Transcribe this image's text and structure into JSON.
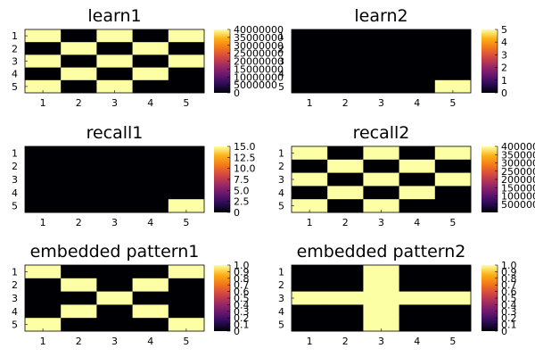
{
  "colors": {
    "background": "#ffffff",
    "axis": "#000000",
    "colormap": "inferno",
    "colormap_stops": [
      "#000004",
      "#2d0b59",
      "#6a176e",
      "#a02a63",
      "#d44842",
      "#f37819",
      "#fcb216",
      "#fcffa4"
    ]
  },
  "chart_data": [
    {
      "type": "heatmap",
      "title": "learn1",
      "x_ticks": [
        "1",
        "2",
        "3",
        "4",
        "5"
      ],
      "y_ticks": [
        "1",
        "2",
        "3",
        "4",
        "5"
      ],
      "clim": [
        0,
        40000000
      ],
      "colorbar_ticks": [
        "0",
        "5000000",
        "10000000",
        "15000000",
        "20000000",
        "25000000",
        "30000000",
        "35000000",
        "40000000"
      ],
      "values": [
        [
          40000000,
          0,
          40000000,
          0,
          40000000
        ],
        [
          0,
          40000000,
          0,
          40000000,
          0
        ],
        [
          40000000,
          0,
          40000000,
          0,
          40000000
        ],
        [
          0,
          40000000,
          0,
          40000000,
          0
        ],
        [
          40000000,
          0,
          40000000,
          0,
          0
        ]
      ]
    },
    {
      "type": "heatmap",
      "title": "learn2",
      "x_ticks": [
        "1",
        "2",
        "3",
        "4",
        "5"
      ],
      "y_ticks": [
        "1",
        "2",
        "3",
        "4",
        "5"
      ],
      "clim": [
        0,
        5
      ],
      "colorbar_ticks": [
        "0",
        "1",
        "2",
        "3",
        "4",
        "5"
      ],
      "values": [
        [
          0,
          0,
          0,
          0,
          0
        ],
        [
          0,
          0,
          0,
          0,
          0
        ],
        [
          0,
          0,
          0,
          0,
          0
        ],
        [
          0,
          0,
          0,
          0,
          0
        ],
        [
          0,
          0,
          0,
          0,
          5
        ]
      ]
    },
    {
      "type": "heatmap",
      "title": "recall1",
      "x_ticks": [
        "1",
        "2",
        "3",
        "4",
        "5"
      ],
      "y_ticks": [
        "1",
        "2",
        "3",
        "4",
        "5"
      ],
      "clim": [
        0,
        15
      ],
      "colorbar_ticks": [
        "0",
        "2.5",
        "5.0",
        "7.5",
        "10.0",
        "12.5",
        "15.0"
      ],
      "values": [
        [
          0,
          0,
          0,
          0,
          0
        ],
        [
          0,
          0,
          0,
          0,
          0
        ],
        [
          0,
          0,
          0,
          0,
          0
        ],
        [
          0,
          0,
          0,
          0,
          0
        ],
        [
          0,
          0,
          0,
          0,
          15
        ]
      ]
    },
    {
      "type": "heatmap",
      "title": "recall2",
      "x_ticks": [
        "1",
        "2",
        "3",
        "4",
        "5"
      ],
      "y_ticks": [
        "1",
        "2",
        "3",
        "4",
        "5"
      ],
      "clim": [
        0,
        40000000
      ],
      "colorbar_ticks": [
        "5000000",
        "10000000",
        "15000000",
        "20000000",
        "25000000",
        "30000000",
        "35000000",
        "40000000"
      ],
      "values": [
        [
          40000000,
          0,
          40000000,
          0,
          40000000
        ],
        [
          0,
          40000000,
          0,
          40000000,
          0
        ],
        [
          40000000,
          0,
          40000000,
          0,
          40000000
        ],
        [
          0,
          40000000,
          0,
          40000000,
          0
        ],
        [
          40000000,
          0,
          40000000,
          0,
          0
        ]
      ]
    },
    {
      "type": "heatmap",
      "title": "embedded pattern1",
      "x_ticks": [
        "1",
        "2",
        "3",
        "4",
        "5"
      ],
      "y_ticks": [
        "1",
        "2",
        "3",
        "4",
        "5"
      ],
      "clim": [
        0,
        1
      ],
      "colorbar_ticks": [
        "0",
        "0.1",
        "0.2",
        "0.3",
        "0.4",
        "0.5",
        "0.6",
        "0.7",
        "0.8",
        "0.9",
        "1.0"
      ],
      "values": [
        [
          1,
          0,
          0,
          0,
          1
        ],
        [
          0,
          1,
          0,
          1,
          0
        ],
        [
          0,
          0,
          1,
          0,
          0
        ],
        [
          0,
          1,
          0,
          1,
          0
        ],
        [
          1,
          0,
          0,
          0,
          1
        ]
      ]
    },
    {
      "type": "heatmap",
      "title": "embedded pattern2",
      "x_ticks": [
        "1",
        "2",
        "3",
        "4",
        "5"
      ],
      "y_ticks": [
        "1",
        "2",
        "3",
        "4",
        "5"
      ],
      "clim": [
        0,
        1
      ],
      "colorbar_ticks": [
        "0",
        "0.1",
        "0.2",
        "0.3",
        "0.4",
        "0.5",
        "0.6",
        "0.7",
        "0.8",
        "0.9",
        "1.0"
      ],
      "values": [
        [
          0,
          0,
          1,
          0,
          0
        ],
        [
          0,
          0,
          1,
          0,
          0
        ],
        [
          1,
          1,
          1,
          1,
          1
        ],
        [
          0,
          0,
          1,
          0,
          0
        ],
        [
          0,
          0,
          1,
          0,
          0
        ]
      ]
    }
  ]
}
